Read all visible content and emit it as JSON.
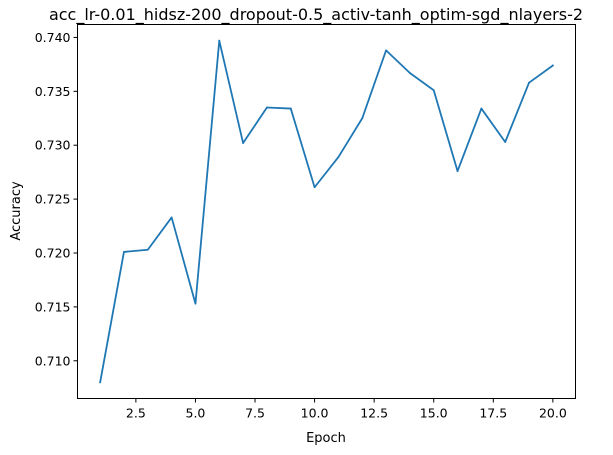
{
  "chart_data": {
    "type": "line",
    "title": "acc_lr-0.01_hidsz-200_dropout-0.5_activ-tanh_optim-sgd_nlayers-2",
    "xlabel": "Epoch",
    "ylabel": "Accuracy",
    "xlim": [
      0.05,
      20.95
    ],
    "ylim": [
      0.7065,
      0.7412
    ],
    "xticks": [
      2.5,
      5.0,
      7.5,
      10.0,
      12.5,
      15.0,
      17.5,
      20.0
    ],
    "xtick_labels": [
      "2.5",
      "5.0",
      "7.5",
      "10.0",
      "12.5",
      "15.0",
      "17.5",
      "20.0"
    ],
    "yticks": [
      0.71,
      0.715,
      0.72,
      0.725,
      0.73,
      0.735,
      0.74
    ],
    "ytick_labels": [
      "0.710",
      "0.715",
      "0.720",
      "0.725",
      "0.730",
      "0.735",
      "0.740"
    ],
    "grid": false,
    "series": [
      {
        "color": "#1f77b4",
        "x": [
          1,
          2,
          3,
          4,
          5,
          6,
          7,
          8,
          9,
          10,
          11,
          12,
          13,
          14,
          15,
          16,
          17,
          18,
          19,
          20
        ],
        "values": [
          0.708,
          0.7201,
          0.7203,
          0.7233,
          0.7153,
          0.7397,
          0.7302,
          0.7335,
          0.7334,
          0.7261,
          0.7289,
          0.7325,
          0.7388,
          0.7367,
          0.7351,
          0.7276,
          0.7334,
          0.7303,
          0.7358,
          0.7374
        ]
      }
    ]
  }
}
